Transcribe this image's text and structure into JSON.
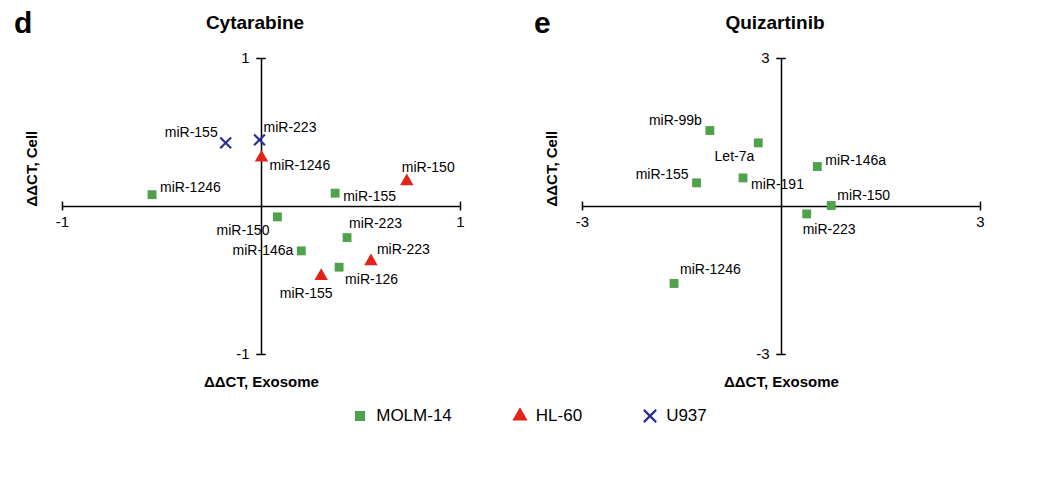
{
  "chart_data": [
    {
      "type": "scatter",
      "panel": "d",
      "title": "Cytarabine",
      "xlabel": "ΔΔCT, Exosome",
      "ylabel": "ΔΔCT, Cell",
      "xlim": [
        -1,
        1
      ],
      "ylim": [
        -1,
        1
      ],
      "xticks": [
        -1,
        1
      ],
      "yticks": [
        -1,
        1
      ],
      "legend": "bottom",
      "series": [
        {
          "name": "MOLM-14",
          "color": "#4ea24a",
          "marker": "square",
          "values": [
            {
              "label": "miR-1246",
              "x": -0.55,
              "y": 0.08
            },
            {
              "label": "miR-155",
              "x": 0.37,
              "y": 0.09
            },
            {
              "label": "miR-150",
              "x": 0.08,
              "y": -0.07
            },
            {
              "label": "miR-223",
              "x": 0.43,
              "y": -0.21
            },
            {
              "label": "miR-146a",
              "x": 0.2,
              "y": -0.3
            },
            {
              "label": "miR-126",
              "x": 0.39,
              "y": -0.41
            }
          ]
        },
        {
          "name": "HL-60",
          "color": "#e2231a",
          "marker": "triangle",
          "values": [
            {
              "label": "miR-1246",
              "x": 0.0,
              "y": 0.33
            },
            {
              "label": "miR-150",
              "x": 0.73,
              "y": 0.17
            },
            {
              "label": "miR-223",
              "x": 0.55,
              "y": -0.37
            },
            {
              "label": "miR-155",
              "x": 0.3,
              "y": -0.47
            }
          ]
        },
        {
          "name": "U937",
          "color": "#2b2f8f",
          "marker": "times",
          "values": [
            {
              "label": "miR-155",
              "x": -0.18,
              "y": 0.43
            },
            {
              "label": "miR-223",
              "x": -0.01,
              "y": 0.45
            }
          ]
        }
      ]
    },
    {
      "type": "scatter",
      "panel": "e",
      "title": "Quizartinib",
      "xlabel": "ΔΔCT, Exosome",
      "ylabel": "ΔΔCT, Cell",
      "xlim": [
        -3,
        3
      ],
      "ylim": [
        -3,
        3
      ],
      "xticks": [
        -3,
        3
      ],
      "yticks": [
        -3,
        3
      ],
      "series": [
        {
          "name": "MOLM-14",
          "color": "#4ea24a",
          "marker": "square",
          "values": [
            {
              "label": "miR-99b",
              "x": -1.08,
              "y": 1.54
            },
            {
              "label": "Let-7a",
              "x": -0.35,
              "y": 1.29
            },
            {
              "label": "miR-146a",
              "x": 0.54,
              "y": 0.81
            },
            {
              "label": "miR-155",
              "x": -1.28,
              "y": 0.48
            },
            {
              "label": "miR-191",
              "x": -0.58,
              "y": 0.58
            },
            {
              "label": "miR-150",
              "x": 0.75,
              "y": 0.02
            },
            {
              "label": "miR-223",
              "x": 0.38,
              "y": -0.15
            },
            {
              "label": "miR-1246",
              "x": -1.62,
              "y": -1.56
            }
          ]
        }
      ]
    }
  ]
}
